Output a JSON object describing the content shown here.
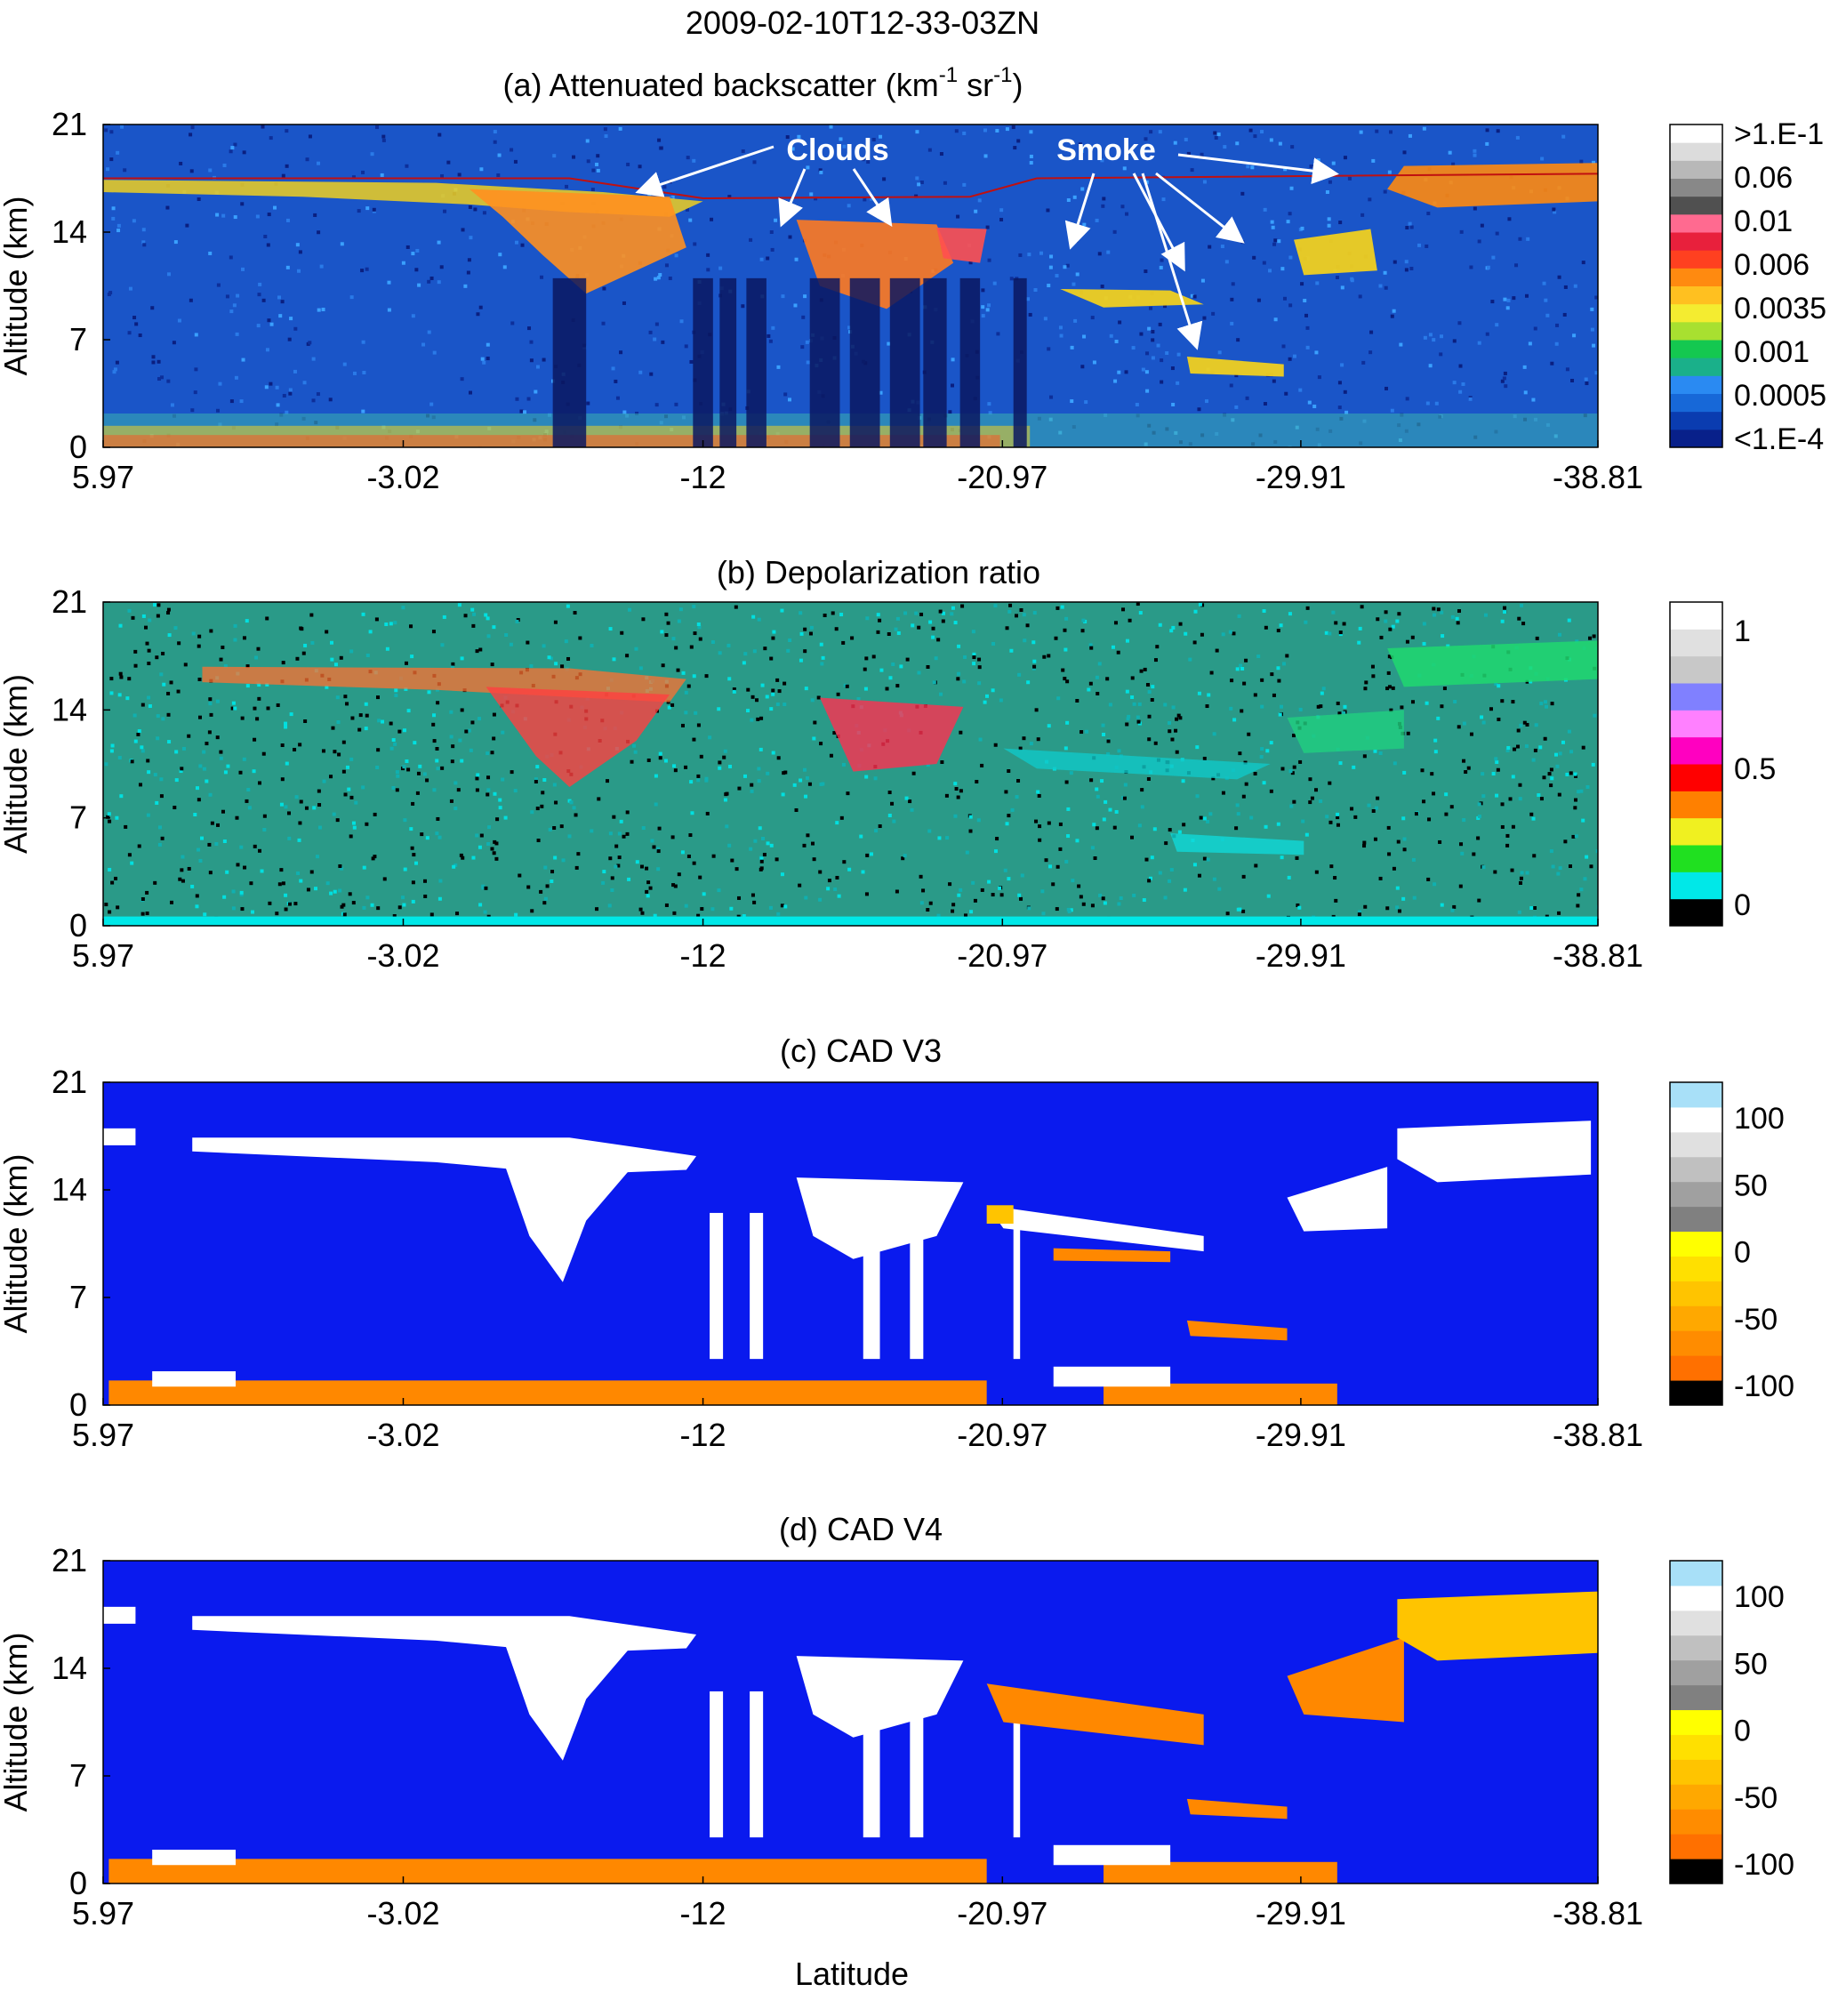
{
  "figure_title": "2009-02-10T12-33-03ZN",
  "xlabel": "Latitude",
  "chart_data": [
    {
      "id": "a",
      "type": "heatmap",
      "title_main": "(a)  Attenuated backscatter (km",
      "title_sup1": "-1",
      "title_mid": "  sr",
      "title_sup2": "-1",
      "title_end": ")",
      "ylabel": "Altitude (km)",
      "x_ticks": [
        "5.97",
        "-3.02",
        "-12",
        "-20.97",
        "-29.91",
        "-38.81"
      ],
      "x_tick_values": [
        5.97,
        -3.02,
        -12,
        -20.97,
        -29.91,
        -38.81
      ],
      "y_ticks": [
        "0",
        "7",
        "14",
        "21"
      ],
      "y_tick_values": [
        0,
        7,
        14,
        21
      ],
      "xlim": [
        5.97,
        -38.81
      ],
      "ylim": [
        0,
        21
      ],
      "background": "#1a55c8",
      "colorbar": {
        "colors": [
          "#08208a",
          "#0a3cb0",
          "#1768d8",
          "#2a8af2",
          "#1ab08a",
          "#14c850",
          "#a8e030",
          "#f4ec30",
          "#ffc020",
          "#ff8a10",
          "#ff4020",
          "#e8203c",
          "#ff6a90",
          "#505050",
          "#888888",
          "#b8b8b8",
          "#dcdcdc",
          "#ffffff"
        ],
        "labels": [
          ">1.E-1",
          "0.06",
          "0.01",
          "0.006",
          "0.0035",
          "0.001",
          "0.0005",
          "<1.E-4"
        ]
      },
      "annotations": {
        "clouds_label": "Clouds",
        "smoke_label": "Smoke"
      }
    },
    {
      "id": "b",
      "type": "heatmap",
      "title": "(b) Depolarization ratio",
      "ylabel": "Altitude (km)",
      "x_ticks": [
        "5.97",
        "-3.02",
        "-12",
        "-20.97",
        "-29.91",
        "-38.81"
      ],
      "x_tick_values": [
        5.97,
        -3.02,
        -12,
        -20.97,
        -29.91,
        -38.81
      ],
      "y_ticks": [
        "0",
        "7",
        "14",
        "21"
      ],
      "y_tick_values": [
        0,
        7,
        14,
        21
      ],
      "xlim": [
        5.97,
        -38.81
      ],
      "ylim": [
        0,
        21
      ],
      "background": "#2a9a88",
      "colorbar": {
        "colors": [
          "#000000",
          "#00e8e8",
          "#20e020",
          "#f0f020",
          "#ff8000",
          "#ff0000",
          "#ff00c0",
          "#ff80ff",
          "#8080ff",
          "#c8c8c8",
          "#e0e0e0",
          "#ffffff"
        ],
        "labels": [
          "1",
          "0.5",
          "0"
        ]
      }
    },
    {
      "id": "c",
      "type": "heatmap",
      "title": "(c) CAD V3",
      "ylabel": "Altitude (km)",
      "x_ticks": [
        "5.97",
        "-3.02",
        "-12",
        "-20.97",
        "-29.91",
        "-38.81"
      ],
      "x_tick_values": [
        5.97,
        -3.02,
        -12,
        -20.97,
        -29.91,
        -38.81
      ],
      "y_ticks": [
        "0",
        "7",
        "14",
        "21"
      ],
      "y_tick_values": [
        0,
        7,
        14,
        21
      ],
      "xlim": [
        5.97,
        -38.81
      ],
      "ylim": [
        0,
        21
      ],
      "background": "#0a1aee",
      "colorbar": {
        "colors": [
          "#000000",
          "#ff7000",
          "#ff8c00",
          "#ffa800",
          "#ffc400",
          "#ffe000",
          "#ffff00",
          "#808080",
          "#a0a0a0",
          "#c0c0c0",
          "#e0e0e0",
          "#ffffff",
          "#a8e0f8"
        ],
        "labels": [
          "100",
          "50",
          "0",
          "-50",
          "-100"
        ]
      }
    },
    {
      "id": "d",
      "type": "heatmap",
      "title": "(d) CAD V4",
      "ylabel": "Altitude (km)",
      "x_ticks": [
        "5.97",
        "-3.02",
        "-12",
        "-20.97",
        "-29.91",
        "-38.81"
      ],
      "x_tick_values": [
        5.97,
        -3.02,
        -12,
        -20.97,
        -29.91,
        -38.81
      ],
      "y_ticks": [
        "0",
        "7",
        "14",
        "21"
      ],
      "y_tick_values": [
        0,
        7,
        14,
        21
      ],
      "xlim": [
        5.97,
        -38.81
      ],
      "ylim": [
        0,
        21
      ],
      "background": "#0a1aee",
      "colorbar": {
        "colors": [
          "#000000",
          "#ff7000",
          "#ff8c00",
          "#ffa800",
          "#ffc400",
          "#ffe000",
          "#ffff00",
          "#808080",
          "#a0a0a0",
          "#c0c0c0",
          "#e0e0e0",
          "#ffffff",
          "#a8e0f8"
        ],
        "labels": [
          "100",
          "50",
          "0",
          "-50",
          "-100"
        ]
      }
    }
  ]
}
